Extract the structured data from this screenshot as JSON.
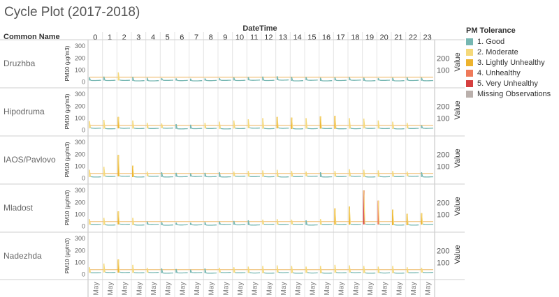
{
  "chart_data": {
    "type": "line",
    "title": "Cycle Plot (2017-2018)",
    "row_header": "Common Name",
    "column_header": "DateTime",
    "hours": [
      "0",
      "1",
      "2",
      "3",
      "4",
      "5",
      "6",
      "7",
      "8",
      "9",
      "10",
      "11",
      "12",
      "13",
      "14",
      "15",
      "16",
      "17",
      "18",
      "19",
      "20",
      "21",
      "22",
      "23"
    ],
    "x_tick_label": "May",
    "ylabel": "PM10 (µg/m3)",
    "y2label": "Value",
    "ylim": [
      -20,
      330
    ],
    "yticks": [
      0,
      100,
      200,
      300
    ],
    "y2ticks": [
      100,
      200
    ],
    "reference_line": 40,
    "legend": {
      "title": "PM Tolerance",
      "items": [
        {
          "label": "1. Good",
          "color": "#76b7b2"
        },
        {
          "label": "2. Moderate",
          "color": "#f5d97a"
        },
        {
          "label": "3. Lightly Unhealthy",
          "color": "#edb32e"
        },
        {
          "label": "4. Unhealthy",
          "color": "#ef7a5a"
        },
        {
          "label": "5. Very Unhealthy",
          "color": "#d63f3f"
        },
        {
          "label": "Missing Observations",
          "color": "#bab0ac"
        }
      ]
    },
    "series": [
      {
        "name": "Druzhba",
        "hour_peaks": [
          38,
          45,
          80,
          42,
          35,
          32,
          30,
          28,
          30,
          32,
          38,
          40,
          45,
          48,
          42,
          40,
          35,
          38,
          40,
          35,
          32,
          35,
          38,
          36
        ]
      },
      {
        "name": "Hipodruma",
        "hour_peaks": [
          75,
          85,
          110,
          80,
          60,
          55,
          50,
          45,
          60,
          70,
          80,
          90,
          100,
          110,
          105,
          100,
          115,
          120,
          100,
          95,
          80,
          70,
          60,
          40
        ]
      },
      {
        "name": "IAOS/Pavlovo",
        "hour_peaks": [
          70,
          95,
          195,
          105,
          55,
          50,
          45,
          40,
          45,
          50,
          55,
          60,
          65,
          70,
          60,
          55,
          50,
          60,
          75,
          70,
          65,
          60,
          55,
          50
        ]
      },
      {
        "name": "Mladost",
        "hour_peaks": [
          60,
          70,
          125,
          70,
          40,
          35,
          30,
          30,
          35,
          40,
          45,
          50,
          55,
          60,
          55,
          50,
          60,
          150,
          165,
          300,
          215,
          140,
          105,
          110
        ]
      },
      {
        "name": "Nadezhda",
        "hour_peaks": [
          60,
          90,
          125,
          80,
          55,
          50,
          45,
          40,
          50,
          55,
          60,
          65,
          70,
          75,
          70,
          65,
          70,
          80,
          75,
          70,
          65,
          70,
          60,
          55
        ]
      }
    ]
  }
}
